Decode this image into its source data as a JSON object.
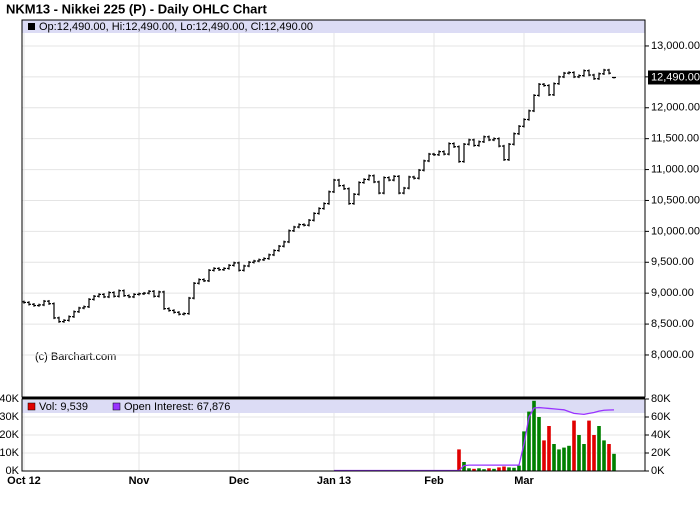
{
  "chart_data": {
    "type": "ohlc",
    "title": "NKM13 - Nikkei 225 (P) - Daily OHLC Chart",
    "ohlc_label": "Op:12,490.00, Hi:12,490.00, Lo:12,490.00, Cl:12,490.00",
    "last_label": "12,490.00",
    "watermark": "(c) Barchart.com",
    "categories": [
      "Oct 12",
      null,
      null,
      null,
      null,
      null,
      null,
      null,
      null,
      null,
      null,
      null,
      null,
      null,
      null,
      null,
      null,
      null,
      null,
      null,
      null,
      null,
      null,
      "Nov",
      null,
      null,
      null,
      null,
      null,
      null,
      null,
      null,
      null,
      null,
      null,
      null,
      null,
      null,
      null,
      null,
      null,
      null,
      null,
      "Dec",
      null,
      null,
      null,
      null,
      null,
      null,
      null,
      null,
      null,
      null,
      null,
      null,
      null,
      null,
      null,
      null,
      null,
      null,
      "Jan 13",
      null,
      null,
      null,
      null,
      null,
      null,
      null,
      null,
      null,
      null,
      null,
      null,
      null,
      null,
      null,
      null,
      null,
      null,
      null,
      "Feb",
      null,
      null,
      null,
      null,
      null,
      null,
      null,
      null,
      null,
      null,
      null,
      null,
      null,
      null,
      null,
      null,
      null,
      "Mar",
      null,
      null,
      null,
      null,
      null,
      null,
      null,
      null,
      null,
      null,
      null,
      null,
      null,
      null,
      null,
      null,
      null,
      null
    ],
    "open": [
      8860,
      8850,
      8820,
      8800,
      8810,
      8870,
      8830,
      8600,
      8540,
      8560,
      8620,
      8700,
      8760,
      8780,
      8900,
      8950,
      8980,
      8940,
      9010,
      8950,
      9040,
      8960,
      8940,
      8980,
      8990,
      9000,
      9030,
      8950,
      9020,
      8750,
      8720,
      8690,
      8660,
      8670,
      8920,
      9160,
      9220,
      9200,
      9370,
      9400,
      9380,
      9400,
      9450,
      9490,
      9370,
      9440,
      9500,
      9520,
      9540,
      9560,
      9620,
      9690,
      9760,
      9830,
      10010,
      10070,
      10110,
      10100,
      10180,
      10290,
      10370,
      10450,
      10640,
      10830,
      10740,
      10690,
      10450,
      10600,
      10790,
      10840,
      10900,
      10800,
      10620,
      10870,
      10830,
      10890,
      10620,
      10700,
      10880,
      10860,
      10990,
      11140,
      11250,
      11240,
      11290,
      11250,
      11420,
      11370,
      11130,
      11410,
      11480,
      11390,
      11450,
      11530,
      11480,
      11500,
      11380,
      11160,
      11410,
      11580,
      11700,
      11810,
      11950,
      12200,
      12380,
      12360,
      12210,
      12390,
      12500,
      12560,
      12570,
      12500,
      12520,
      12600,
      12530,
      12470,
      12550,
      12610,
      12490
    ],
    "high": [
      8880,
      8870,
      8840,
      8830,
      8890,
      8890,
      8850,
      8620,
      8580,
      8640,
      8720,
      8780,
      8800,
      8920,
      8970,
      9000,
      9000,
      9030,
      9030,
      9060,
      9060,
      8980,
      9000,
      9010,
      9020,
      9050,
      9050,
      9040,
      9040,
      8770,
      8740,
      8710,
      8690,
      8940,
      9180,
      9240,
      9240,
      9390,
      9420,
      9420,
      9420,
      9470,
      9510,
      9510,
      9460,
      9520,
      9540,
      9560,
      9580,
      9640,
      9710,
      9780,
      9850,
      10030,
      10090,
      10130,
      10130,
      10200,
      10310,
      10390,
      10470,
      10660,
      10850,
      10850,
      10760,
      10710,
      10620,
      10810,
      10860,
      10920,
      10920,
      10820,
      10890,
      10890,
      10910,
      10910,
      10720,
      10900,
      10900,
      11010,
      11160,
      11270,
      11270,
      11310,
      11310,
      11440,
      11440,
      11390,
      11430,
      11500,
      11500,
      11470,
      11550,
      11550,
      11520,
      11520,
      11400,
      11430,
      11600,
      11720,
      11830,
      11970,
      12220,
      12400,
      12400,
      12380,
      12410,
      12520,
      12580,
      12590,
      12590,
      12540,
      12620,
      12620,
      12550,
      12570,
      12630,
      12630,
      12490
    ],
    "low": [
      8830,
      8800,
      8780,
      8780,
      8790,
      8810,
      8580,
      8520,
      8520,
      8540,
      8600,
      8680,
      8740,
      8760,
      8880,
      8930,
      8920,
      8920,
      8930,
      8930,
      8940,
      8920,
      8920,
      8960,
      8970,
      8980,
      8930,
      8930,
      8730,
      8700,
      8670,
      8640,
      8640,
      8650,
      8900,
      9140,
      9180,
      9180,
      9350,
      9360,
      9360,
      9380,
      9430,
      9350,
      9350,
      9420,
      9480,
      9500,
      9520,
      9540,
      9600,
      9670,
      9740,
      9810,
      9990,
      10050,
      10080,
      10080,
      10160,
      10270,
      10350,
      10430,
      10620,
      10720,
      10670,
      10430,
      10430,
      10580,
      10770,
      10820,
      10780,
      10600,
      10600,
      10810,
      10810,
      10600,
      10600,
      10680,
      10840,
      10840,
      10970,
      11120,
      11220,
      11220,
      11230,
      11230,
      11350,
      11110,
      11110,
      11390,
      11370,
      11370,
      11430,
      11460,
      11460,
      11360,
      11140,
      11140,
      11390,
      11560,
      11680,
      11790,
      11930,
      12180,
      12340,
      12190,
      12190,
      12370,
      12480,
      12540,
      12480,
      12480,
      12500,
      12510,
      12450,
      12450,
      12530,
      12540,
      12490
    ],
    "close": [
      8850,
      8820,
      8800,
      8810,
      8870,
      8830,
      8600,
      8540,
      8560,
      8620,
      8700,
      8760,
      8780,
      8900,
      8950,
      8980,
      8940,
      9010,
      8950,
      9040,
      8960,
      8940,
      8980,
      8990,
      9000,
      9030,
      8950,
      9020,
      8750,
      8720,
      8690,
      8660,
      8670,
      8920,
      9160,
      9220,
      9200,
      9370,
      9400,
      9380,
      9400,
      9450,
      9490,
      9370,
      9440,
      9500,
      9520,
      9540,
      9560,
      9620,
      9690,
      9760,
      9830,
      10010,
      10070,
      10110,
      10100,
      10180,
      10290,
      10370,
      10450,
      10640,
      10830,
      10740,
      10690,
      10450,
      10600,
      10790,
      10840,
      10900,
      10800,
      10620,
      10870,
      10830,
      10890,
      10620,
      10700,
      10880,
      10860,
      10990,
      11140,
      11250,
      11240,
      11290,
      11250,
      11420,
      11370,
      11130,
      11410,
      11480,
      11390,
      11450,
      11530,
      11480,
      11500,
      11380,
      11160,
      11410,
      11580,
      11700,
      11810,
      11950,
      12200,
      12380,
      12360,
      12210,
      12390,
      12500,
      12560,
      12570,
      12500,
      12520,
      12600,
      12530,
      12470,
      12550,
      12610,
      12560,
      12490
    ],
    "bar_color": "#000000",
    "ylim": [
      7320,
      13420
    ],
    "yticks": [
      {
        "value": 8000,
        "label": "8,000.00"
      },
      {
        "value": 8500,
        "label": "8,500.00"
      },
      {
        "value": 9000,
        "label": "9,000.00"
      },
      {
        "value": 9500,
        "label": "9,500.00"
      },
      {
        "value": 10000,
        "label": "10,000.00"
      },
      {
        "value": 10500,
        "label": "10,500.00"
      },
      {
        "value": 11000,
        "label": "11,000.00"
      },
      {
        "value": 11500,
        "label": "11,500.00"
      },
      {
        "value": 12000,
        "label": "12,000.00"
      },
      {
        "value": 12500,
        "label": "12,500.00"
      },
      {
        "value": 13000,
        "label": "13,000.00"
      }
    ],
    "grid": true,
    "volume": {
      "name": "Vol: 9,539",
      "color": "#e00000",
      "up_color": "#008000",
      "down_color": "#e00000",
      "values": [
        0,
        0,
        0,
        0,
        0,
        0,
        0,
        0,
        0,
        0,
        0,
        0,
        0,
        0,
        0,
        0,
        0,
        0,
        0,
        0,
        0,
        0,
        0,
        0,
        0,
        0,
        0,
        0,
        0,
        0,
        0,
        0,
        0,
        0,
        0,
        0,
        0,
        0,
        0,
        0,
        0,
        0,
        0,
        0,
        0,
        0,
        0,
        0,
        0,
        0,
        0,
        0,
        0,
        0,
        0,
        0,
        0,
        0,
        0,
        0,
        0,
        0,
        0,
        0,
        0,
        0,
        0,
        0,
        0,
        0,
        0,
        0,
        0,
        0,
        0,
        0,
        0,
        0,
        0,
        0,
        0,
        0,
        0,
        0,
        0,
        0,
        300,
        12000,
        5000,
        1500,
        1200,
        1500,
        1000,
        1500,
        1200,
        2000,
        2500,
        2000,
        1800,
        3000,
        22000,
        33000,
        39000,
        30000,
        17000,
        25000,
        15000,
        12000,
        13000,
        14000,
        28000,
        20000,
        15000,
        28000,
        20000,
        25000,
        17000,
        15000,
        9539
      ],
      "ylim": [
        0,
        40000
      ],
      "yticks": [
        {
          "value": 0,
          "label": "0K"
        },
        {
          "value": 10000,
          "label": "10K"
        },
        {
          "value": 20000,
          "label": "20K"
        },
        {
          "value": 30000,
          "label": "30K"
        },
        {
          "value": 40000,
          "label": "40K"
        }
      ]
    },
    "open_interest": {
      "name": "Open Interest: 67,876",
      "color": "#9933ff",
      "axis": "y2",
      "values": [
        null,
        null,
        null,
        null,
        null,
        null,
        null,
        null,
        null,
        null,
        null,
        null,
        null,
        null,
        null,
        null,
        null,
        null,
        null,
        null,
        null,
        null,
        null,
        null,
        null,
        null,
        null,
        null,
        null,
        null,
        null,
        null,
        null,
        null,
        null,
        null,
        null,
        null,
        null,
        null,
        null,
        null,
        null,
        null,
        null,
        null,
        null,
        null,
        null,
        null,
        null,
        null,
        null,
        null,
        null,
        null,
        null,
        null,
        null,
        null,
        null,
        null,
        500,
        500,
        500,
        500,
        500,
        500,
        500,
        500,
        500,
        500,
        500,
        500,
        500,
        500,
        500,
        500,
        500,
        500,
        500,
        500,
        500,
        500,
        500,
        500,
        500,
        500,
        6000,
        6500,
        6500,
        6500,
        6500,
        6500,
        6500,
        6500,
        6500,
        6500,
        6500,
        6500,
        30000,
        60000,
        70000,
        70500,
        70000,
        69500,
        69000,
        68500,
        68000,
        66000,
        64000,
        63500,
        63000,
        64000,
        65000,
        66500,
        67500,
        67800,
        67876
      ],
      "y2lim": [
        0,
        80000
      ],
      "y2ticks": [
        {
          "value": 0,
          "label": "0K"
        },
        {
          "value": 20000,
          "label": "20K"
        },
        {
          "value": 40000,
          "label": "40K"
        },
        {
          "value": 60000,
          "label": "60K"
        },
        {
          "value": 80000,
          "label": "80K"
        }
      ]
    }
  }
}
